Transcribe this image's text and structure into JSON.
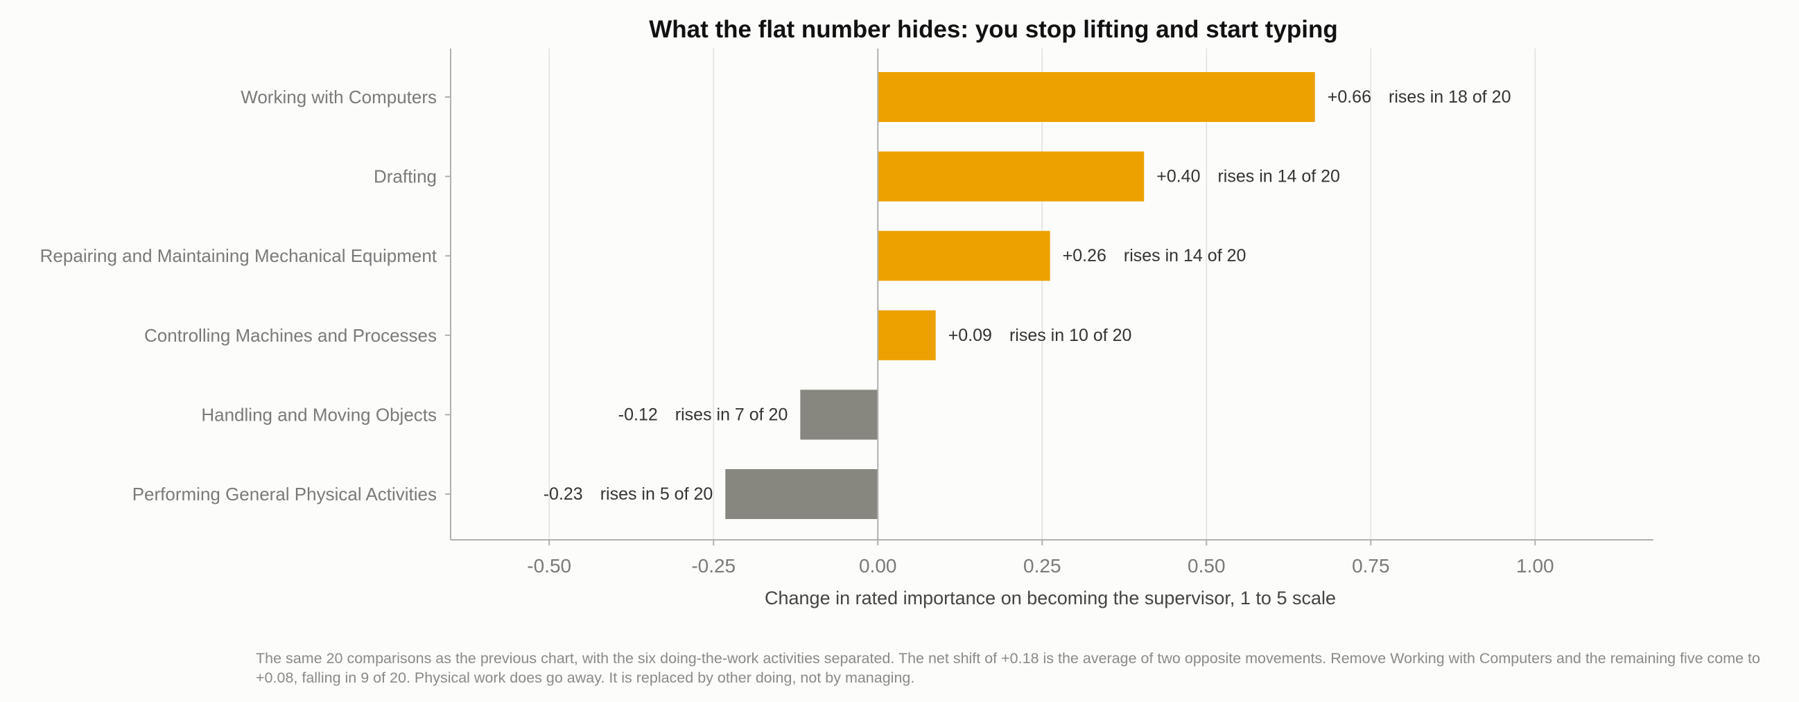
{
  "chart_data": {
    "type": "bar",
    "orientation": "horizontal",
    "title": "What the flat number hides: you stop lifting and start typing",
    "xlabel": "Change in rated importance on becoming the supervisor, 1 to 5 scale",
    "ylabel": "",
    "xlim": [
      -0.65,
      1.18
    ],
    "xticks": [
      -0.5,
      -0.25,
      0.0,
      0.25,
      0.5,
      0.75,
      1.0
    ],
    "xtick_labels": [
      "-0.50",
      "-0.25",
      "0.00",
      "0.25",
      "0.50",
      "0.75",
      "1.00"
    ],
    "grid": "vertical",
    "categories": [
      "Working with Computers",
      "Drafting",
      "Repairing and Maintaining Mechanical Equipment",
      "Controlling Machines and Processes",
      "Handling and Moving Objects",
      "Performing General Physical Activities"
    ],
    "values": [
      0.665,
      0.405,
      0.262,
      0.088,
      -0.118,
      -0.232
    ],
    "value_labels": [
      "+0.66",
      "+0.40",
      "+0.26",
      "+0.09",
      "-0.12",
      "-0.23"
    ],
    "annotations": [
      "rises in 18 of 20",
      "rises in 14 of 20",
      "rises in 14 of 20",
      "rises in 10 of 20",
      "rises in 7 of 20",
      "rises in 5 of 20"
    ],
    "colors": {
      "positive": "#eca100",
      "negative": "#87867f",
      "axis": "#b0b0b0",
      "grid": "#e0e0e0"
    }
  },
  "note": "The same 20 comparisons as the previous chart, with the six doing-the-work activities separated. The net shift of +0.18 is the average of two opposite movements. Remove Working with Computers and the remaining five come to +0.08, falling in 9 of 20. Physical work does go away. It is replaced by other doing, not by managing."
}
